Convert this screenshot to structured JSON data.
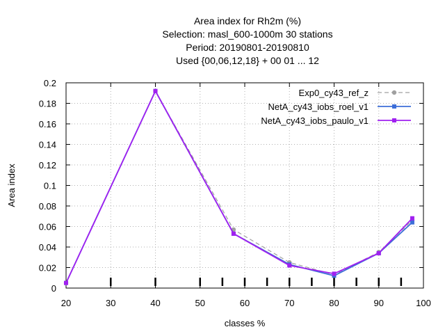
{
  "chart_data": {
    "type": "line",
    "title_lines": [
      "Area index  for Rh2m (%)",
      "Selection: masl_600-1000m     30 stations",
      "Period: 20190801-20190810",
      "Used {00,06,12,18} + 00 01 ... 12"
    ],
    "xlabel": "classes %",
    "ylabel": "Area index",
    "xlim": [
      20,
      100
    ],
    "ylim": [
      0,
      0.2
    ],
    "xticks": [
      20,
      30,
      40,
      50,
      60,
      70,
      80,
      90,
      100
    ],
    "yticks": [
      0,
      0.02,
      0.04,
      0.06,
      0.08,
      0.1,
      0.12,
      0.14,
      0.16,
      0.18,
      0.2
    ],
    "ytick_labels": [
      "0",
      "0.02",
      "0.04",
      "0.06",
      "0.08",
      "0.1",
      "0.12",
      "0.14",
      "0.16",
      "0.18",
      "0.2"
    ],
    "class_marks": [
      30,
      40,
      50,
      55,
      60,
      65,
      70,
      75,
      80,
      85,
      90,
      95
    ],
    "grid": true,
    "legend_position": "top-right",
    "series": [
      {
        "name": "Exp0_cy43_ref_z",
        "color": "#a0a0a0",
        "dash": true,
        "marker": "circle",
        "x": [
          20,
          40,
          57.5,
          70,
          80,
          90,
          97.5
        ],
        "y": [
          0.005,
          0.192,
          0.057,
          0.025,
          0.013,
          0.035,
          0.066
        ]
      },
      {
        "name": "NetA_cy43_iobs_roel_v1",
        "color": "#3d6ed8",
        "dash": false,
        "marker": "square",
        "x": [
          20,
          40,
          57.5,
          70,
          80,
          90,
          97.5
        ],
        "y": [
          0.005,
          0.192,
          0.053,
          0.023,
          0.012,
          0.034,
          0.064
        ]
      },
      {
        "name": "NetA_cy43_iobs_paulo_v1",
        "color": "#a020f0",
        "dash": false,
        "marker": "square",
        "x": [
          20,
          40,
          57.5,
          70,
          80,
          90,
          97.5
        ],
        "y": [
          0.005,
          0.192,
          0.053,
          0.022,
          0.014,
          0.034,
          0.068
        ]
      }
    ]
  }
}
